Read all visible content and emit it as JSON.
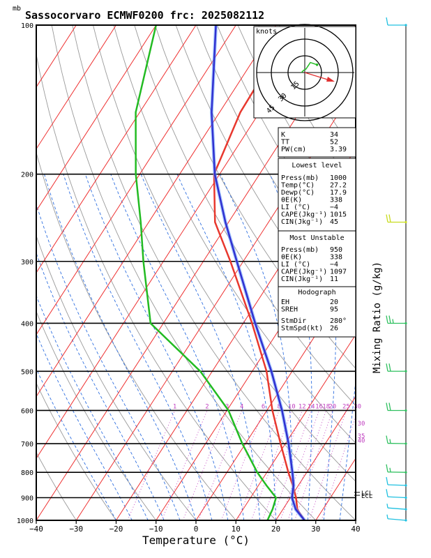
{
  "chart_data": {
    "type": "skew-t",
    "title": "Sassocorvaro ECMWF0200 frc: 2025082112",
    "pressure_unit": "mb",
    "xlabel": "Temperature (°C)",
    "right_label": "Mixing Ratio (g/kg)",
    "xlim": [
      -40,
      40
    ],
    "ylim_mb": [
      1000,
      100
    ],
    "x_ticks": [
      -40,
      -30,
      -20,
      -10,
      0,
      10,
      20,
      30,
      40
    ],
    "pressure_ticks": [
      100,
      200,
      300,
      400,
      500,
      600,
      700,
      800,
      900,
      1000
    ],
    "mixing_ratio_labels": [
      "1",
      "2",
      "3",
      "4",
      "6",
      "8",
      "10",
      "12",
      "14",
      "16",
      "18",
      "20",
      "25",
      "30"
    ],
    "theta_e_labels": [
      "30",
      "35",
      "40"
    ],
    "levels_marked": [
      "LCL",
      "ECL"
    ],
    "series": [
      {
        "name": "temperature",
        "color": "#e8382e",
        "points": [
          [
            1000,
            27.2
          ],
          [
            950,
            23.6
          ],
          [
            900,
            21.4
          ],
          [
            850,
            18.6
          ],
          [
            800,
            15.4
          ],
          [
            700,
            8.8
          ],
          [
            600,
            1.4
          ],
          [
            500,
            -6.4
          ],
          [
            400,
            -17.8
          ],
          [
            300,
            -33.2
          ],
          [
            250,
            -43.4
          ],
          [
            200,
            -51.4
          ],
          [
            150,
            -54.8
          ],
          [
            100,
            -55.6
          ]
        ]
      },
      {
        "name": "dewpoint",
        "color": "#22bb22",
        "points": [
          [
            1000,
            17.9
          ],
          [
            950,
            17.4
          ],
          [
            900,
            16.4
          ],
          [
            850,
            12.0
          ],
          [
            800,
            7.6
          ],
          [
            700,
            -0.8
          ],
          [
            600,
            -9.6
          ],
          [
            500,
            -23.0
          ],
          [
            400,
            -43.2
          ],
          [
            300,
            -55.0
          ],
          [
            250,
            -62.0
          ],
          [
            200,
            -71.0
          ],
          [
            150,
            -81.0
          ],
          [
            100,
            -90.0
          ]
        ]
      },
      {
        "name": "parcel",
        "color": "#3030d0",
        "points": [
          [
            1000,
            27.2
          ],
          [
            950,
            23.2
          ],
          [
            900,
            20.4
          ],
          [
            850,
            18.8
          ],
          [
            800,
            16.4
          ],
          [
            700,
            10.8
          ],
          [
            600,
            3.8
          ],
          [
            500,
            -5.2
          ],
          [
            400,
            -17.0
          ],
          [
            300,
            -31.6
          ],
          [
            250,
            -40.8
          ],
          [
            200,
            -51.2
          ],
          [
            150,
            -62.0
          ],
          [
            100,
            -75.0
          ]
        ]
      }
    ],
    "hodograph": {
      "title": "knots",
      "ring_labels": [
        "15",
        "30",
        "45"
      ],
      "points": [
        [
          -3,
          0
        ],
        [
          -1,
          2
        ],
        [
          1,
          3
        ],
        [
          3,
          6
        ],
        [
          5,
          9
        ],
        [
          8,
          8
        ],
        [
          11,
          7
        ]
      ],
      "storm_motion": {
        "dir": "280°",
        "spd": "26"
      }
    },
    "indices": {
      "top": [
        [
          "K",
          "34"
        ],
        [
          "TT",
          "52"
        ],
        [
          "PW(cm)",
          "3.39"
        ]
      ],
      "lowest_title": "Lowest level",
      "lowest": [
        [
          "Press(mb)",
          "1000"
        ],
        [
          "Temp(°C)",
          "27.2"
        ],
        [
          "Dewp(°C)",
          "17.9"
        ],
        [
          "θE(K)",
          "338"
        ],
        [
          "LI (°C)",
          "−4"
        ],
        [
          "CAPE(Jkg⁻¹)",
          "1015"
        ],
        [
          "CIN(Jkg⁻¹)",
          "45"
        ]
      ],
      "unstable_title": "Most Unstable",
      "unstable": [
        [
          "Press(mb)",
          "950"
        ],
        [
          "θE(K)",
          "338"
        ],
        [
          "LI (°C)",
          "−4"
        ],
        [
          "CAPE(Jkg⁻¹)",
          "1097"
        ],
        [
          "CIN(Jkg⁻¹)",
          "11"
        ]
      ],
      "hodo_title": "Hodograph",
      "hodo": [
        [
          "EH",
          "20"
        ],
        [
          "SREH",
          "95"
        ]
      ],
      "storm": [
        [
          "StmDir",
          "280°"
        ],
        [
          "StmSpd(kt)",
          "26"
        ]
      ]
    },
    "wind_barbs": [
      {
        "p": 100,
        "dir": 270,
        "spd": 10
      },
      {
        "p": 250,
        "dir": 270,
        "spd": 20
      },
      {
        "p": 400,
        "dir": 270,
        "spd": 25
      },
      {
        "p": 500,
        "dir": 270,
        "spd": 20
      },
      {
        "p": 600,
        "dir": 270,
        "spd": 20
      },
      {
        "p": 700,
        "dir": 280,
        "spd": 15
      },
      {
        "p": 800,
        "dir": 280,
        "spd": 15
      },
      {
        "p": 850,
        "dir": 290,
        "spd": 10
      },
      {
        "p": 900,
        "dir": 300,
        "spd": 10
      },
      {
        "p": 950,
        "dir": 320,
        "spd": 5
      },
      {
        "p": 1000,
        "dir": 330,
        "spd": 5
      }
    ],
    "colors": {
      "temp": "#e8382e",
      "dew": "#22bb22",
      "parcel": "#3030d0",
      "parcel_light": "#6aa0ff",
      "isotherm": "#ee3030",
      "dry_adiabat": "#999999",
      "moist_adiabat": "#3070e0",
      "mixing": "#c040c0",
      "hodo_arrow": "#e03030",
      "barb_colors": [
        "#20c0e0",
        "#c8dc20",
        "#30c060"
      ]
    }
  }
}
